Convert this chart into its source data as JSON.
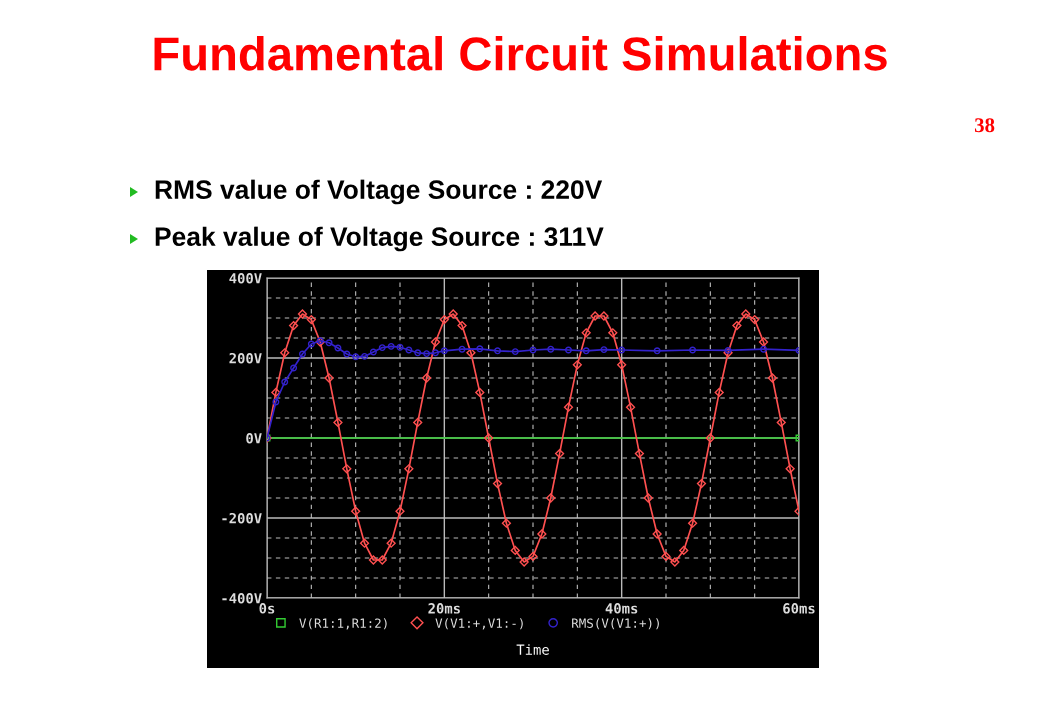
{
  "chart_data": {
    "type": "line",
    "title": "Fundamental Circuit Simulations",
    "xlabel": "Time",
    "annotations": [
      "38",
      "RMS value of Voltage Source : 220V",
      "Peak value of Voltage Source : 311V"
    ],
    "series": [
      {
        "name": "V(R1:1,R1:2)",
        "color": "#33cc33",
        "marker": "square",
        "x": [
          0,
          60
        ],
        "values": [
          0,
          0
        ]
      },
      {
        "name": "V(V1:+,V1:-)",
        "color": "#ff5050",
        "marker": "diamond",
        "x": [
          0,
          1,
          2,
          3,
          4,
          5,
          6,
          7,
          8,
          9,
          10,
          11,
          12,
          13,
          14,
          15,
          16,
          17,
          18,
          19,
          20,
          21,
          22,
          23,
          24,
          25,
          26,
          27,
          28,
          29,
          30,
          31,
          32,
          33,
          34,
          35,
          36,
          37,
          38,
          39,
          40,
          41,
          42,
          43,
          44,
          45,
          46,
          47,
          48,
          49,
          50,
          51,
          52,
          53,
          54,
          55,
          56,
          57,
          58,
          59,
          60
        ],
        "values": [
          0,
          114,
          213,
          281,
          310,
          296,
          240,
          150,
          39,
          -77,
          -183,
          -263,
          -305,
          -305,
          -263,
          -183,
          -77,
          39,
          150,
          240,
          296,
          310,
          281,
          213,
          114,
          0,
          -114,
          -213,
          -281,
          -310,
          -296,
          -240,
          -150,
          -39,
          77,
          183,
          263,
          305,
          305,
          263,
          183,
          77,
          -39,
          -150,
          -240,
          -296,
          -310,
          -281,
          -213,
          -114,
          0,
          114,
          213,
          281,
          310,
          296,
          240,
          150,
          39,
          -77,
          -183
        ]
      },
      {
        "name": "RMS(V(V1:+))",
        "color": "#3322cc",
        "marker": "circle",
        "x": [
          0,
          1,
          2,
          3,
          4,
          5,
          6,
          7,
          8,
          9,
          10,
          11,
          12,
          13,
          14,
          15,
          16,
          17,
          18,
          19,
          20,
          22,
          24,
          26,
          28,
          30,
          32,
          34,
          36,
          38,
          40,
          44,
          48,
          52,
          56,
          60
        ],
        "values": [
          0,
          90,
          140,
          175,
          210,
          235,
          243,
          238,
          225,
          210,
          203,
          204,
          215,
          226,
          229,
          227,
          220,
          213,
          211,
          213,
          218,
          222,
          223,
          218,
          216,
          220,
          222,
          220,
          218,
          221,
          220,
          218,
          220,
          219,
          222,
          219
        ]
      }
    ],
    "xlim": [
      0,
      60
    ],
    "ylim": [
      -400,
      400
    ],
    "xticks": [
      {
        "value": 0,
        "label": "0s"
      },
      {
        "value": 20,
        "label": "20ms"
      },
      {
        "value": 40,
        "label": "40ms"
      },
      {
        "value": 60,
        "label": "60ms"
      }
    ],
    "yticks": [
      {
        "value": -400,
        "label": "-400V"
      },
      {
        "value": -200,
        "label": "-200V"
      },
      {
        "value": 0,
        "label": "0V"
      },
      {
        "value": 200,
        "label": "200V"
      },
      {
        "value": 400,
        "label": "400V"
      }
    ],
    "grid": true,
    "legend": "bottom"
  }
}
